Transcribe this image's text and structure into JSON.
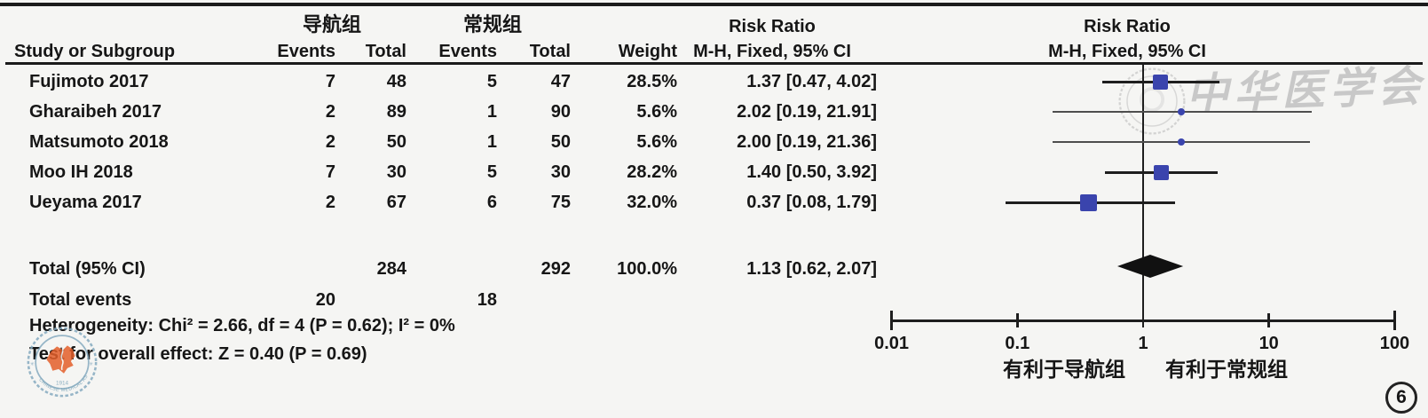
{
  "meta": {
    "figure_number": "6"
  },
  "table": {
    "group1_header": "导航组",
    "group2_header": "常规组",
    "headers": {
      "study": "Study or Subgroup",
      "events1": "Events",
      "total1": "Total",
      "events2": "Events",
      "total2": "Total",
      "weight": "Weight",
      "rr_line1": "Risk Ratio",
      "rr_line2": "M-H, Fixed, 95% CI"
    },
    "studies": [
      {
        "name": "Fujimoto 2017",
        "e1": "7",
        "t1": "48",
        "e2": "5",
        "t2": "47",
        "weight": "28.5%",
        "rr": "1.37 [0.47, 4.02]"
      },
      {
        "name": "Gharaibeh 2017",
        "e1": "2",
        "t1": "89",
        "e2": "1",
        "t2": "90",
        "weight": "5.6%",
        "rr": "2.02 [0.19, 21.91]"
      },
      {
        "name": "Matsumoto 2018",
        "e1": "2",
        "t1": "50",
        "e2": "1",
        "t2": "50",
        "weight": "5.6%",
        "rr": "2.00 [0.19, 21.36]"
      },
      {
        "name": "Moo IH 2018",
        "e1": "7",
        "t1": "30",
        "e2": "5",
        "t2": "30",
        "weight": "28.2%",
        "rr": "1.40 [0.50, 3.92]"
      },
      {
        "name": "Ueyama 2017",
        "e1": "2",
        "t1": "67",
        "e2": "6",
        "t2": "75",
        "weight": "32.0%",
        "rr": "0.37 [0.08, 1.79]"
      }
    ],
    "total_row": {
      "label": "Total (95% CI)",
      "t1": "284",
      "t2": "292",
      "weight": "100.0%",
      "rr": "1.13 [0.62, 2.07]"
    },
    "total_events": {
      "label": "Total events",
      "e1": "20",
      "e2": "18"
    },
    "heterogeneity": "Heterogeneity: Chi² = 2.66, df = 4 (P = 0.62); I² = 0%",
    "overall_effect": "Test for overall effect: Z = 0.40 (P = 0.69)"
  },
  "plot": {
    "header_line1": "Risk Ratio",
    "header_line2": "M-H, Fixed, 95% CI",
    "axis_ticks": [
      "0.01",
      "0.1",
      "1",
      "10",
      "100"
    ],
    "favors_left": "有利于导航组",
    "favors_right": "有利于常规组",
    "marker_color": "#3a44ad",
    "line_color": "#1e1e1e"
  },
  "watermarks": {
    "script_text": "中华医学会",
    "seal_ring_text": "CHINESE MEDICAL ASSOCIATION",
    "seal_year": "1914"
  },
  "chart_data": {
    "type": "forest",
    "effect_measure": "Risk Ratio (M-H, Fixed, 95% CI)",
    "x_scale": "log10",
    "x_ticks": [
      0.01,
      0.1,
      1,
      10,
      100
    ],
    "xlim": [
      0.01,
      100
    ],
    "null_line": 1,
    "studies": [
      {
        "label": "Fujimoto 2017",
        "rr": 1.37,
        "ci_low": 0.47,
        "ci_high": 4.02,
        "weight_pct": 28.5
      },
      {
        "label": "Gharaibeh 2017",
        "rr": 2.02,
        "ci_low": 0.19,
        "ci_high": 21.91,
        "weight_pct": 5.6
      },
      {
        "label": "Matsumoto 2018",
        "rr": 2.0,
        "ci_low": 0.19,
        "ci_high": 21.36,
        "weight_pct": 5.6
      },
      {
        "label": "Moo IH 2018",
        "rr": 1.4,
        "ci_low": 0.5,
        "ci_high": 3.92,
        "weight_pct": 28.2
      },
      {
        "label": "Ueyama 2017",
        "rr": 0.37,
        "ci_low": 0.08,
        "ci_high": 1.79,
        "weight_pct": 32.0
      }
    ],
    "total": {
      "label": "Total (95% CI)",
      "rr": 1.13,
      "ci_low": 0.62,
      "ci_high": 2.07,
      "weight_pct": 100.0
    },
    "heterogeneity": {
      "chi2": 2.66,
      "df": 4,
      "p": 0.62,
      "i2_pct": 0
    },
    "overall_effect": {
      "z": 0.4,
      "p": 0.69
    }
  }
}
